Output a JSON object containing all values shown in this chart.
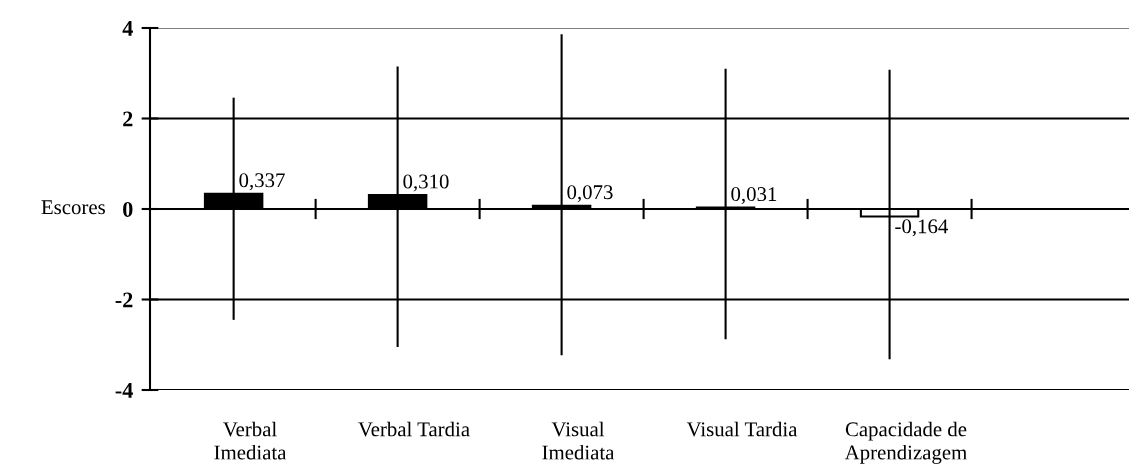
{
  "chart_data": {
    "type": "bar",
    "ylabel": "Escores",
    "categories": [
      "Verbal\nImediata",
      "Verbal Tardia",
      "Visual\nImediata",
      "Visual Tardia",
      "Capacidade de\nAprendizagem"
    ],
    "values": [
      0.337,
      0.31,
      0.073,
      0.031,
      -0.164
    ],
    "colors": [
      "#000000",
      "#000000",
      "#000000",
      "#000000",
      "#ffffff"
    ],
    "errors": [
      [
        -2.45,
        2.46
      ],
      [
        -3.05,
        3.15
      ],
      [
        -3.23,
        3.86
      ],
      [
        -2.88,
        3.1
      ],
      [
        -3.32,
        3.08
      ]
    ],
    "value_labels": [
      "0,337",
      "0,310",
      "0,073",
      "0,031",
      "-0,164"
    ],
    "ylim": [
      -4,
      4
    ],
    "yticks": [
      {
        "value": -4,
        "label": "-4"
      },
      {
        "value": -2,
        "label": "-2"
      },
      0,
      2,
      4
    ],
    "grid": "y"
  }
}
